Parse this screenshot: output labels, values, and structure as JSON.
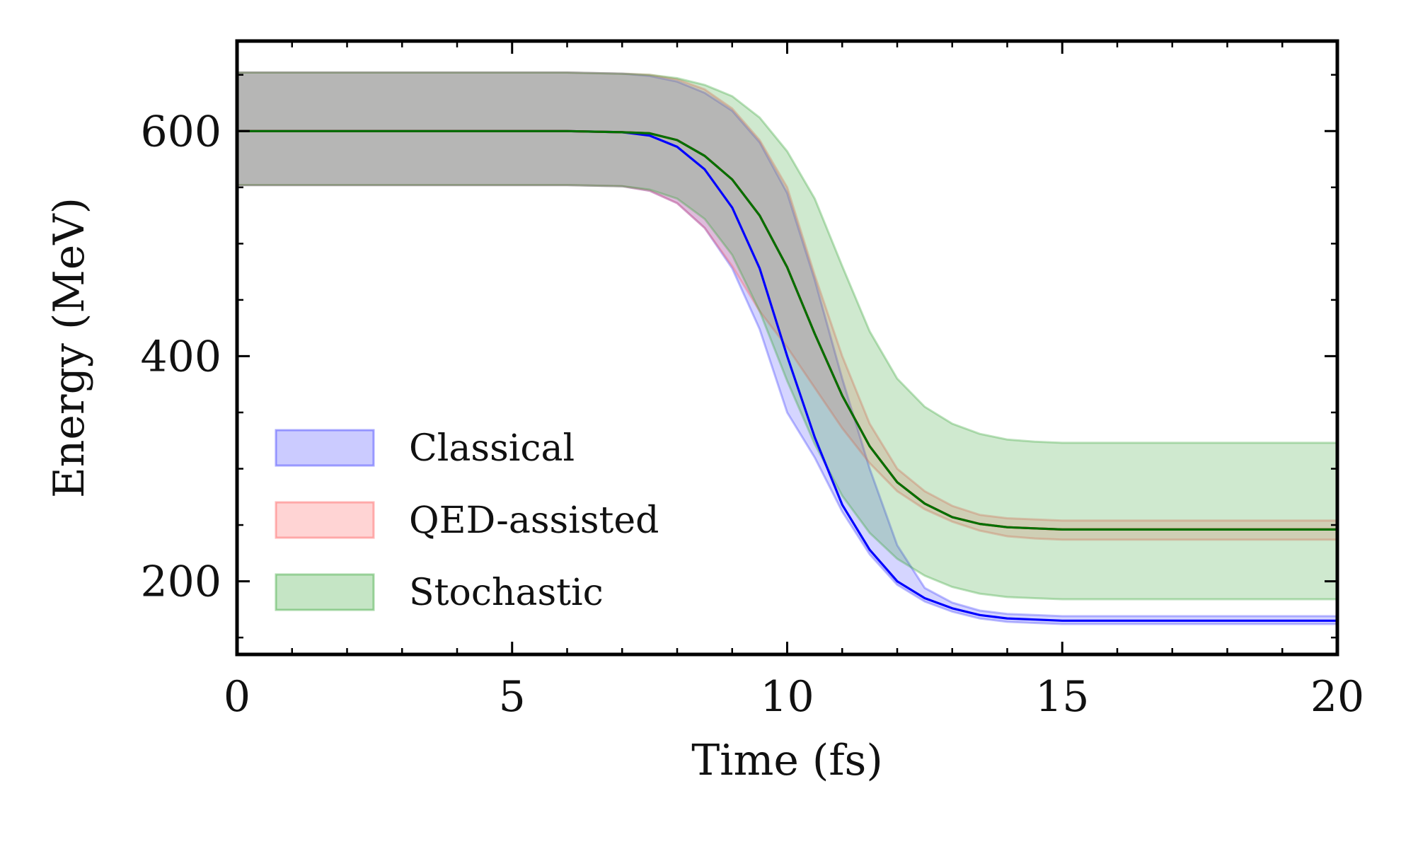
{
  "chart_data": {
    "type": "line",
    "title": "",
    "xlabel": "Time (fs)",
    "ylabel": "Energy (MeV)",
    "xlim": [
      0,
      20
    ],
    "ylim": [
      135,
      680
    ],
    "xticks": [
      0,
      5,
      10,
      15,
      20
    ],
    "yticks": [
      200,
      400,
      600
    ],
    "x_minor_step": 1,
    "y_minor_step": 50,
    "grid": false,
    "legend_position": "lower-left",
    "x": [
      0,
      1,
      2,
      3,
      4,
      5,
      6,
      7,
      7.5,
      8,
      8.5,
      9,
      9.5,
      10,
      10.5,
      11,
      11.5,
      12,
      12.5,
      13,
      13.5,
      14,
      14.5,
      15,
      16,
      17,
      18,
      19,
      20
    ],
    "series": [
      {
        "name": "Classical",
        "color": "#0000ff",
        "band_color": "#4040ff",
        "band_opacity": 0.22,
        "mean": [
          600,
          600,
          600,
          600,
          600,
          600,
          600,
          599,
          596,
          586,
          566,
          532,
          478,
          400,
          328,
          268,
          228,
          200,
          185,
          176,
          170,
          167,
          166,
          165,
          165,
          165,
          165,
          165,
          165
        ],
        "lower": [
          552,
          552,
          552,
          552,
          552,
          552,
          552,
          551,
          547,
          536,
          514,
          478,
          424,
          350,
          310,
          262,
          224,
          197,
          182,
          173,
          167,
          164,
          163,
          162,
          162,
          162,
          162,
          162,
          162
        ],
        "upper": [
          652,
          652,
          652,
          652,
          652,
          652,
          652,
          651,
          649,
          644,
          634,
          618,
          590,
          545,
          468,
          380,
          300,
          232,
          194,
          181,
          174,
          171,
          170,
          169,
          169,
          169,
          169,
          169,
          169
        ]
      },
      {
        "name": "QED-assisted",
        "color": "#ff0000",
        "band_color": "#ff6060",
        "band_opacity": 0.22,
        "mean": [
          600,
          600,
          600,
          600,
          600,
          600,
          600,
          599,
          598,
          592,
          578,
          557,
          525,
          479,
          420,
          365,
          320,
          288,
          269,
          257,
          251,
          248,
          247,
          246,
          246,
          246,
          246,
          246,
          246
        ],
        "lower": [
          552,
          552,
          552,
          552,
          552,
          552,
          552,
          551,
          547,
          536,
          514,
          480,
          440,
          408,
          372,
          336,
          305,
          280,
          264,
          253,
          245,
          240,
          238,
          237,
          237,
          237,
          237,
          237,
          237
        ],
        "upper": [
          652,
          652,
          652,
          652,
          652,
          652,
          652,
          651,
          650,
          646,
          637,
          620,
          592,
          550,
          472,
          400,
          340,
          300,
          280,
          267,
          259,
          256,
          255,
          254,
          254,
          254,
          254,
          254,
          254
        ]
      },
      {
        "name": "Stochastic",
        "color": "#007000",
        "band_color": "#40a840",
        "band_opacity": 0.25,
        "mean": [
          600,
          600,
          600,
          600,
          600,
          600,
          600,
          599,
          598,
          592,
          578,
          557,
          525,
          479,
          420,
          365,
          320,
          288,
          269,
          257,
          251,
          248,
          247,
          246,
          246,
          246,
          246,
          246,
          246
        ],
        "lower": [
          552,
          552,
          552,
          552,
          552,
          552,
          552,
          551,
          548,
          540,
          522,
          490,
          440,
          378,
          322,
          276,
          243,
          220,
          205,
          195,
          189,
          186,
          185,
          184,
          184,
          184,
          184,
          184,
          184
        ],
        "upper": [
          652,
          652,
          652,
          652,
          652,
          652,
          652,
          651,
          650,
          647,
          641,
          631,
          612,
          582,
          540,
          480,
          422,
          380,
          355,
          340,
          331,
          326,
          324,
          323,
          323,
          323,
          323,
          323,
          323
        ]
      }
    ]
  }
}
